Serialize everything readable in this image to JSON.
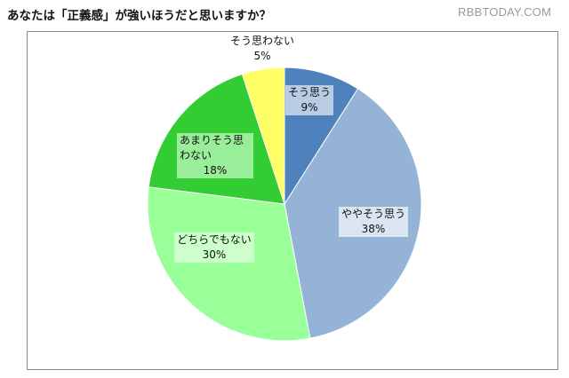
{
  "title": "あなたは「正義感」が強いほうだと思いますか？",
  "watermark": "RBBTODAY.COM",
  "chart_data": {
    "type": "pie",
    "title": "あなたは「正義感」が強いほうだと思いますか？",
    "start_angle_deg": 0,
    "direction": "clockwise",
    "slices": [
      {
        "label": "そう思う",
        "value": 9,
        "value_text": "9%",
        "color": "#4f81bd",
        "label_bg": "#b9cce4"
      },
      {
        "label": "ややそう思う",
        "value": 38,
        "value_text": "38%",
        "color": "#95b3d7",
        "label_bg": "#dbe5f1"
      },
      {
        "label": "どちらでもない",
        "value": 30,
        "value_text": "30%",
        "color": "#99ff99",
        "label_bg": "#ccffcc"
      },
      {
        "label": "あまりそう思わない",
        "value": 18,
        "value_text": "18%",
        "color": "#33cc33",
        "label_bg": "#99ee99"
      },
      {
        "label": "そう思わない",
        "value": 5,
        "value_text": "5%",
        "color": "#ffff66",
        "label_bg": null
      }
    ]
  }
}
